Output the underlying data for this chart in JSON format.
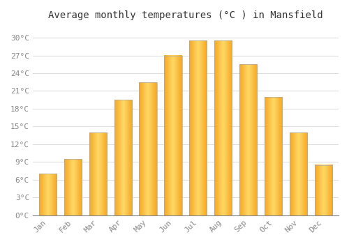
{
  "months": [
    "Jan",
    "Feb",
    "Mar",
    "Apr",
    "May",
    "Jun",
    "Jul",
    "Aug",
    "Sep",
    "Oct",
    "Nov",
    "Dec"
  ],
  "values": [
    7.0,
    9.5,
    14.0,
    19.5,
    22.5,
    27.0,
    29.5,
    29.5,
    25.5,
    20.0,
    14.0,
    8.5
  ],
  "bar_color_edge": "#F5A623",
  "bar_color_center": "#FFD966",
  "bar_edge_color": "#AAAAAA",
  "title": "Average monthly temperatures (°C ) in Mansfield",
  "ylim": [
    0,
    32
  ],
  "yticks": [
    0,
    3,
    6,
    9,
    12,
    15,
    18,
    21,
    24,
    27,
    30
  ],
  "ytick_labels": [
    "0°C",
    "3°C",
    "6°C",
    "9°C",
    "12°C",
    "15°C",
    "18°C",
    "21°C",
    "24°C",
    "27°C",
    "30°C"
  ],
  "background_color": "#ffffff",
  "grid_color": "#dddddd",
  "title_fontsize": 10,
  "tick_fontsize": 8,
  "font_family": "monospace"
}
